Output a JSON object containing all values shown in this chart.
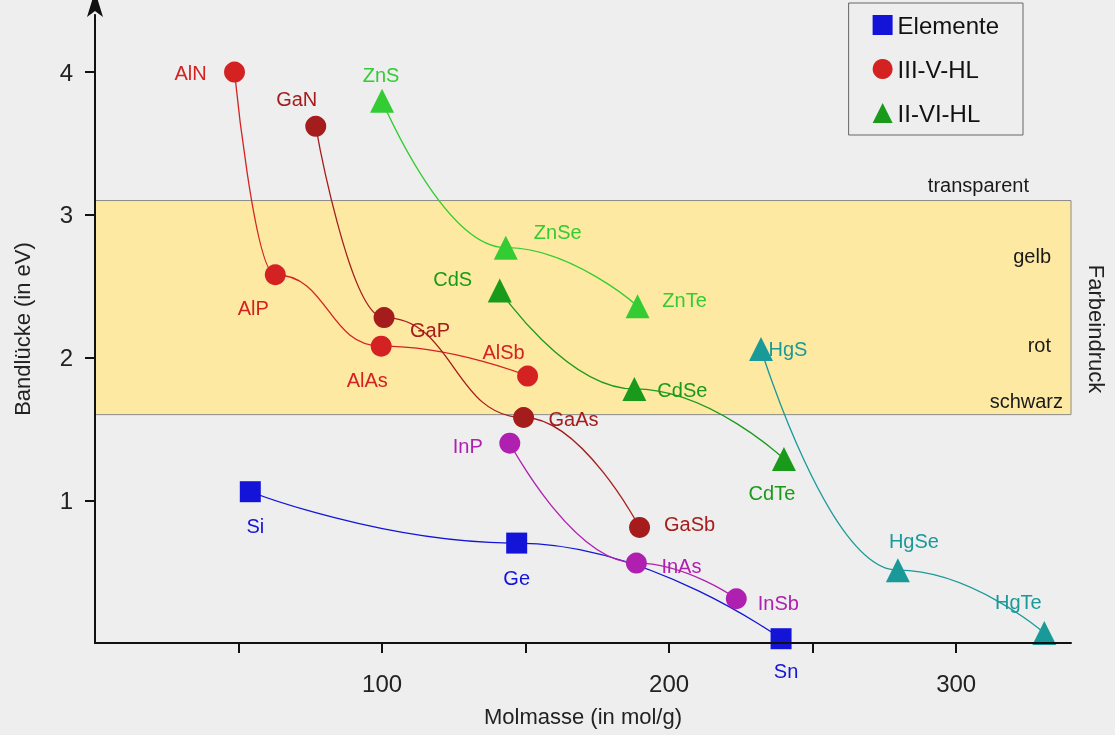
{
  "chart_data": {
    "type": "line",
    "xlabel": "Molmasse (in mol/g)",
    "ylabel": "Bandlücke (in eV)",
    "y2label": "Farbeindruck",
    "xlim": [
      0,
      340
    ],
    "ylim": [
      0,
      4.4
    ],
    "xticks": [
      {
        "value": 50,
        "label": null
      },
      100,
      {
        "value": 150,
        "label": null
      },
      200,
      {
        "value": 250,
        "label": null
      },
      300
    ],
    "yticks": [
      1,
      2,
      3,
      4
    ],
    "grid": false,
    "legend": "top right",
    "line_style": "solid",
    "bands": [
      {
        "axis": "y",
        "from": 1.6,
        "to": 3.1,
        "color": "#fde9a2"
      }
    ],
    "series": [
      {
        "name": "Elemente",
        "color": "#1414d8",
        "marker": "square",
        "x": [
          54.1,
          146.9,
          239
        ],
        "values": [
          1.06,
          0.7,
          0.03
        ]
      },
      {
        "name": "III-V-HL",
        "color": "#d42222",
        "marker": "circle",
        "x": [
          48.6,
          62.8,
          99.7,
          150.7
        ],
        "values": [
          4.0,
          2.58,
          2.08,
          1.87
        ]
      },
      {
        "color": "#a51c1c",
        "marker": "circle",
        "x": [
          76.9,
          100.7,
          149.3,
          189.7
        ],
        "values": [
          3.62,
          2.28,
          1.58,
          0.81
        ]
      },
      {
        "color": "#b020b0",
        "marker": "circle",
        "x": [
          144.5,
          188.6,
          223.4
        ],
        "values": [
          1.4,
          0.56,
          0.31
        ]
      },
      {
        "color": "#33cc33",
        "marker": "triangle",
        "x": [
          100,
          143.1,
          189
        ],
        "values": [
          3.8,
          2.77,
          2.36
        ]
      },
      {
        "name": "II-VI-HL",
        "color": "#1a9a1a",
        "marker": "triangle",
        "x": [
          141,
          187.9,
          240
        ],
        "values": [
          2.47,
          1.78,
          1.29
        ]
      },
      {
        "color": "#1a9999",
        "marker": "triangle",
        "x": [
          232,
          279.7,
          330.7
        ],
        "values": [
          2.06,
          0.51,
          0.07
        ]
      }
    ],
    "annotations": [
      {
        "text": "Si",
        "x": 54.1,
        "y": 1.06
      },
      {
        "text": "Ge",
        "x": 146.9,
        "y": 0.7
      },
      {
        "text": "Sn",
        "x": 239,
        "y": 0.03
      },
      {
        "text": "AlN",
        "x": 48.6,
        "y": 4.0
      },
      {
        "text": "AlP",
        "x": 62.8,
        "y": 2.58
      },
      {
        "text": "AlAs",
        "x": 99.7,
        "y": 2.08
      },
      {
        "text": "AlSb",
        "x": 150.7,
        "y": 1.87
      },
      {
        "text": "GaN",
        "x": 76.9,
        "y": 3.62
      },
      {
        "text": "GaP",
        "x": 100.7,
        "y": 2.28
      },
      {
        "text": "GaAs",
        "x": 149.3,
        "y": 1.58
      },
      {
        "text": "GaSb",
        "x": 189.7,
        "y": 0.81
      },
      {
        "text": "InP",
        "x": 144.5,
        "y": 1.4
      },
      {
        "text": "InAs",
        "x": 188.6,
        "y": 0.56
      },
      {
        "text": "InSb",
        "x": 223.4,
        "y": 0.31
      },
      {
        "text": "ZnS",
        "x": 100,
        "y": 3.8
      },
      {
        "text": "ZnSe",
        "x": 143.1,
        "y": 2.77
      },
      {
        "text": "ZnTe",
        "x": 189,
        "y": 2.36
      },
      {
        "text": "CdS",
        "x": 141,
        "y": 2.47
      },
      {
        "text": "CdSe",
        "x": 187.9,
        "y": 1.78
      },
      {
        "text": "CdTe",
        "x": 240,
        "y": 1.29
      },
      {
        "text": "HgS",
        "x": 232,
        "y": 2.06
      },
      {
        "text": "HgSe",
        "x": 279.7,
        "y": 0.51
      },
      {
        "text": "HgTe",
        "x": 330.7,
        "y": 0.07
      },
      {
        "text": "transparent",
        "x": 340,
        "y": 3.1
      },
      {
        "text": "gelb",
        "x": 340,
        "y": 2.71
      },
      {
        "text": "rot",
        "x": 340,
        "y": 2.09
      },
      {
        "text": "schwarz",
        "x": 340,
        "y": 1.6
      }
    ]
  }
}
